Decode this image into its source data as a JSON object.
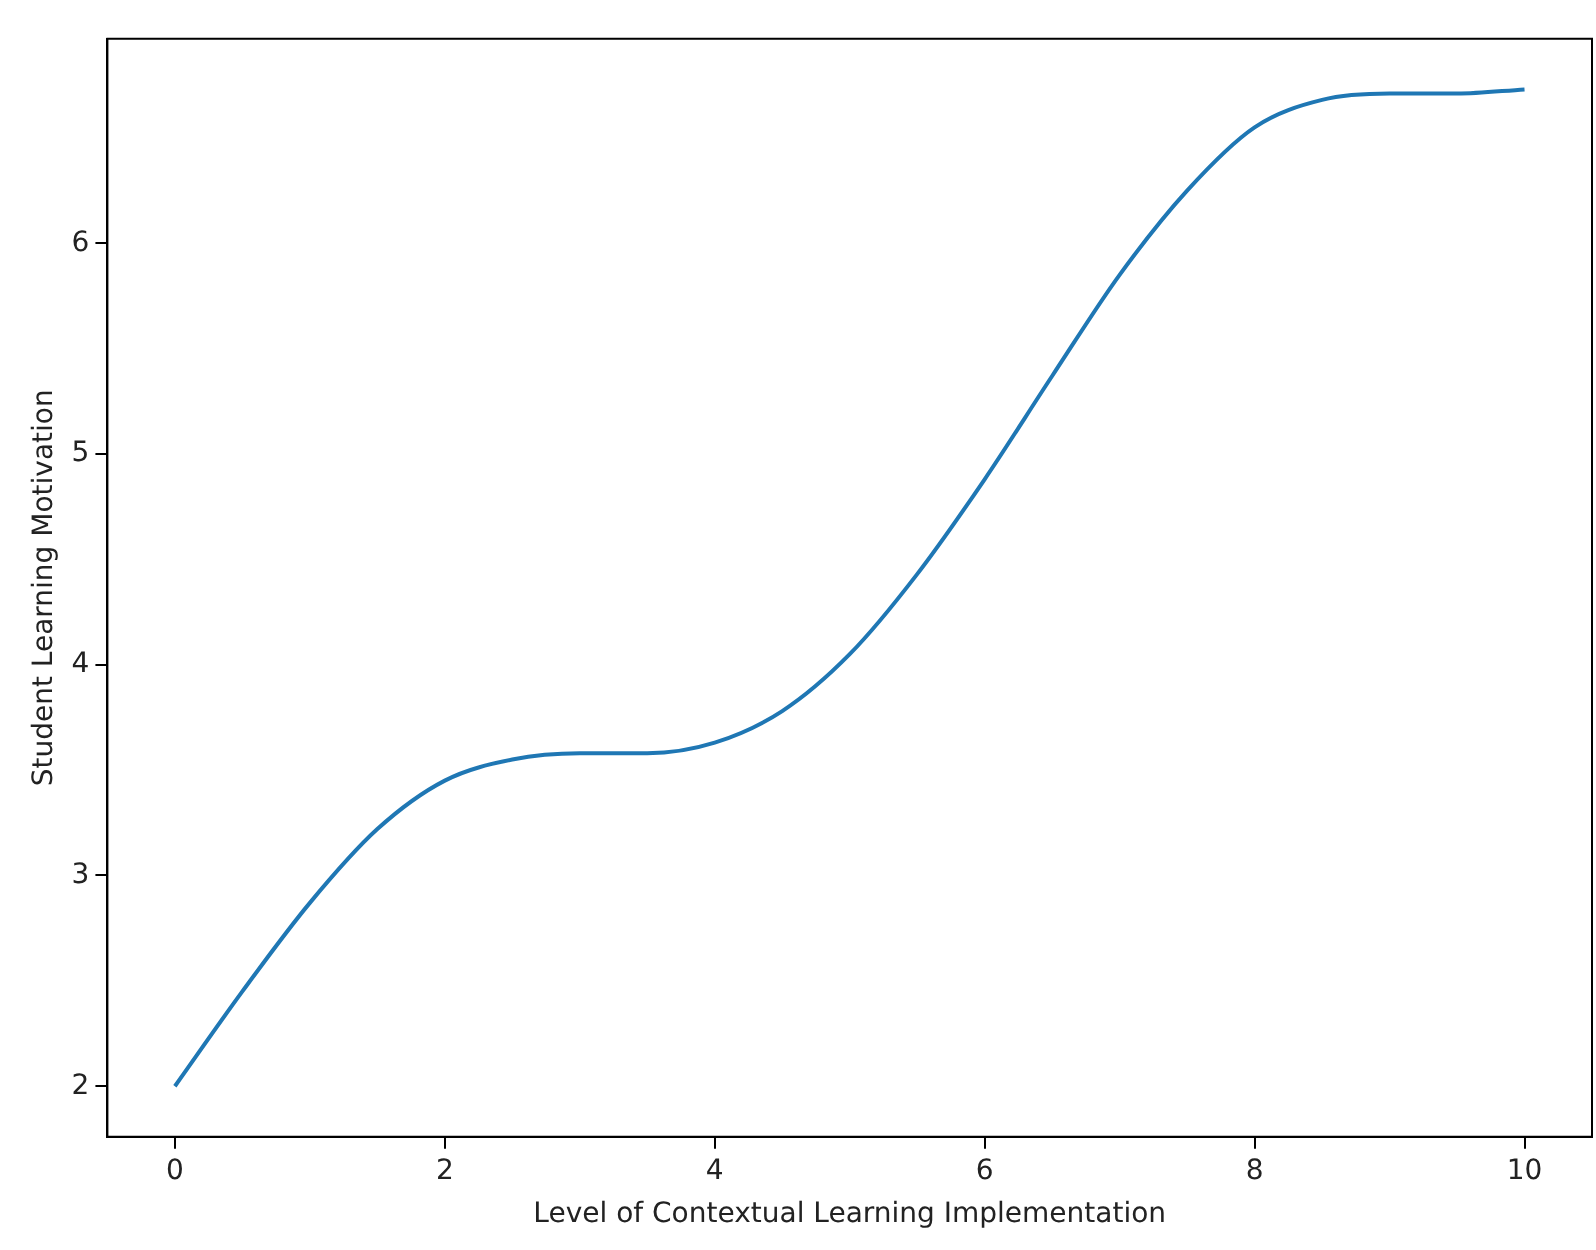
{
  "chart_data": {
    "type": "line",
    "xlabel": "Level of Contextual Learning Implementation",
    "ylabel": "Student Learning Motivation",
    "x": [
      0,
      0.5,
      1,
      1.5,
      2,
      2.5,
      3,
      3.5,
      4,
      4.5,
      5,
      5.5,
      6,
      6.5,
      7,
      7.5,
      8,
      8.5,
      9,
      9.5,
      10
    ],
    "series": [
      {
        "color": "#1f77b4",
        "values": [
          2.0,
          2.45,
          2.87,
          3.22,
          3.45,
          3.55,
          3.58,
          3.58,
          3.63,
          3.78,
          4.05,
          4.43,
          4.88,
          5.37,
          5.85,
          6.25,
          6.55,
          6.68,
          6.71,
          6.71,
          6.73
        ]
      }
    ],
    "xlim": [
      -0.5,
      10.5
    ],
    "ylim": [
      1.76,
      6.97
    ],
    "xticks": [
      0,
      2,
      4,
      6,
      8,
      10
    ],
    "yticks": [
      2,
      3,
      4,
      5,
      6
    ],
    "grid": false,
    "legend": false,
    "marker": "none",
    "line_style": "solid"
  }
}
